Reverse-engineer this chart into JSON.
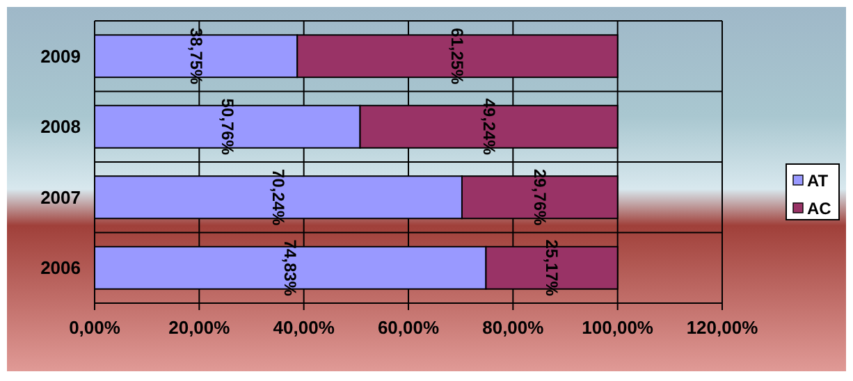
{
  "chart_data": {
    "type": "bar",
    "orientation": "horizontal",
    "stacked": true,
    "categories": [
      "2009",
      "2008",
      "2007",
      "2006"
    ],
    "series": [
      {
        "name": "AT",
        "color": "#9999ff",
        "values": [
          38.75,
          50.76,
          70.24,
          74.83
        ],
        "value_labels": [
          "38,75%",
          "50,76%",
          "70,24%",
          "74,83%"
        ]
      },
      {
        "name": "AC",
        "color": "#993366",
        "values": [
          61.25,
          49.24,
          29.76,
          25.17
        ],
        "value_labels": [
          "61,25%",
          "49,24%",
          "29,76%",
          "25,17%"
        ]
      }
    ],
    "xlim": [
      0,
      120
    ],
    "xticks": [
      {
        "value": 0,
        "label": "0,00%"
      },
      {
        "value": 20,
        "label": "20,00%"
      },
      {
        "value": 40,
        "label": "40,00%"
      },
      {
        "value": 60,
        "label": "60,00%"
      },
      {
        "value": 80,
        "label": "80,00%"
      },
      {
        "value": 100,
        "label": "100,00%"
      },
      {
        "value": 120,
        "label": "120,00%"
      }
    ],
    "grid": true,
    "legend": "right"
  }
}
